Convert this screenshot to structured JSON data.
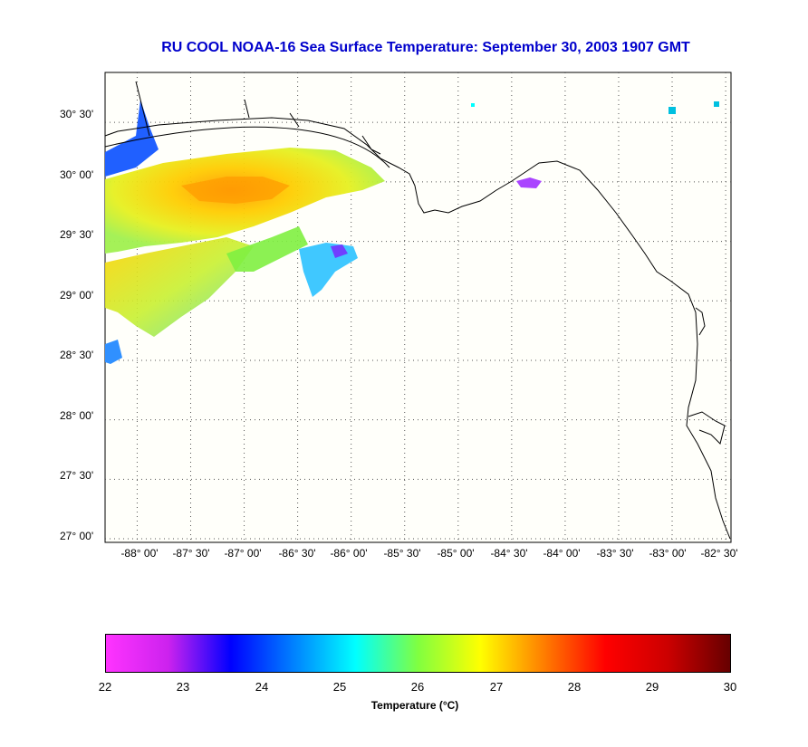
{
  "title": "RU COOL  NOAA-16  Sea Surface Temperature:  September 30, 2003 1907 GMT",
  "map": {
    "lat_labels": [
      "30° 30'",
      "30° 00'",
      "29° 30'",
      "29° 00'",
      "28° 30'",
      "28° 00'",
      "27° 30'",
      "27° 00'"
    ],
    "lon_labels": [
      "-88° 00'",
      "-87° 30'",
      "-87° 00'",
      "-86° 30'",
      "-86° 00'",
      "-85° 30'",
      "-85° 00'",
      "-84° 30'",
      "-84° 00'",
      "-83° 30'",
      "-83° 00'",
      "-82° 30'"
    ],
    "lat_range": [
      26.97,
      30.92
    ],
    "lon_range": [
      -88.3,
      -82.45
    ],
    "background_color": "#fffffa",
    "grid_color": "#555555"
  },
  "colorbar": {
    "min": 22,
    "max": 30,
    "ticks": [
      "22",
      "23",
      "24",
      "25",
      "26",
      "27",
      "28",
      "29",
      "30"
    ],
    "label": "Temperature (°C)",
    "colors": [
      "#ff33ff",
      "#cc22ee",
      "#0000ff",
      "#0080ff",
      "#00ffff",
      "#80ff40",
      "#ffff00",
      "#ff8000",
      "#ff0000",
      "#cc0000",
      "#660000"
    ]
  }
}
